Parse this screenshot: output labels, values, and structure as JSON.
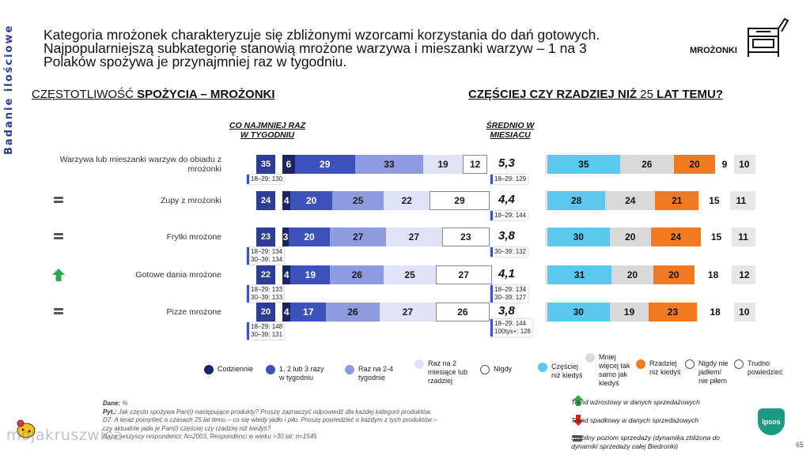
{
  "side_label": "Badanie ilościowe",
  "headline": [
    "Kategoria mrożonek charakteryzuje się zbliżonymi wzorcami korzystania do dań gotowych.",
    "Najpopularniejszą subkategorię stanowią mrożone warzywa i mieszanki warzyw – 1 na 3",
    "Polaków spożywa je przynajmniej raz w tygodniu."
  ],
  "category": "MROŻONKI",
  "section1_title_a": "CZĘSTOTLIWOŚĆ ",
  "section1_title_b": "SPOŻYCIA – MROŻONKI",
  "section2_title_a": "CZĘŚCIEJ CZY RZADZIEJ NIŻ ",
  "section2_title_b": "25",
  "section2_title_c": " LAT TEMU?",
  "col_head_atleast": [
    "CO NAJMNIEJ RAZ",
    "W TYGODNIU"
  ],
  "col_head_avg": [
    "ŚREDNIO W",
    "MIESIĄCU"
  ],
  "chart_data": [
    {
      "type": "bar",
      "title": "CZĘSTOTLIWOŚĆ SPOŻYCIA – MROŻONKI",
      "stacked": true,
      "orientation": "horizontal",
      "categories": [
        "Warzywa lub mieszanki warzyw do obiadu z mrożonki",
        "Zupy z mrożonki",
        "Frytki mrożone",
        "Gotowe dania mrożone",
        "Pizze mrożone"
      ],
      "series": [
        {
          "name": "Codziennie",
          "values": [
            6,
            4,
            3,
            4,
            4
          ]
        },
        {
          "name": "1, 2 lub 3 razy w tygodniu",
          "values": [
            29,
            20,
            20,
            19,
            17
          ]
        },
        {
          "name": "Raz na 2-4 tygodnie",
          "values": [
            33,
            25,
            27,
            26,
            26
          ]
        },
        {
          "name": "Raz na 2 miesiące lub rzadziej",
          "values": [
            19,
            22,
            27,
            25,
            27
          ]
        },
        {
          "name": "Nigdy",
          "values": [
            12,
            29,
            23,
            27,
            26
          ]
        }
      ],
      "at_least_weekly": [
        35,
        24,
        23,
        22,
        20
      ],
      "monthly_average": [
        "5,3",
        "4,4",
        "3,8",
        "4,1",
        "3,8"
      ],
      "trend": [
        "",
        "flat",
        "flat",
        "up",
        "flat"
      ],
      "subgroups_atleast": [
        [
          "18–29: 130"
        ],
        [],
        [
          "18–29: 134",
          "30–39: 134"
        ],
        [
          "18–29: 133",
          "30–39: 133"
        ],
        [
          "18–29: 148",
          "30–39: 131"
        ]
      ],
      "subgroups_avg": [
        [
          "18–29: 129"
        ],
        [
          "18–29: 144"
        ],
        [
          "30–39: 132"
        ],
        [
          "18–29: 134",
          "30–39: 127"
        ],
        [
          "18–29: 144",
          "100tys+: 126"
        ]
      ]
    },
    {
      "type": "bar",
      "title": "CZĘŚCIEJ CZY RZADZIEJ NIŻ 25 LAT TEMU?",
      "stacked": true,
      "orientation": "horizontal",
      "categories": [
        "Warzywa lub mieszanki warzyw do obiadu z mrożonki",
        "Zupy z mrożonki",
        "Frytki mrożone",
        "Gotowe dania mrożone",
        "Pizze mrożone"
      ],
      "series": [
        {
          "name": "Częściej niż kiedyś",
          "values": [
            35,
            28,
            30,
            31,
            30
          ]
        },
        {
          "name": "Mniej więcej tak samo jak kiedyś",
          "values": [
            26,
            24,
            20,
            20,
            19
          ]
        },
        {
          "name": "Rzadziej niż kiedyś",
          "values": [
            20,
            21,
            24,
            20,
            23
          ]
        },
        {
          "name": "Nigdy nie jadłem/ nie piłem",
          "values": [
            9,
            15,
            15,
            18,
            18
          ]
        },
        {
          "name": "Trudno powiedzieć",
          "values": [
            10,
            11,
            11,
            12,
            10
          ]
        }
      ]
    }
  ],
  "legend1": [
    {
      "label": "Codziennie",
      "color": "#1c2466"
    },
    {
      "label": "1, 2 lub 3 razy w tygodniu",
      "color": "#3d52ba"
    },
    {
      "label": "Raz na 2-4 tygodnie",
      "color": "#8e9bde"
    },
    {
      "label": "Raz na 2 miesiące lub rzadziej",
      "color": "#dfe3f6"
    },
    {
      "label": "Nigdy",
      "color": "#ffffff"
    }
  ],
  "legend2": [
    {
      "label": "Częściej niż kiedyś",
      "color": "#5bc8ee"
    },
    {
      "label": "Mniej więcej tak samo jak kiedyś",
      "color": "#d9d9d9"
    },
    {
      "label": "Rzadziej niż kiedyś",
      "color": "#f07a22"
    },
    {
      "label": "Nigdy nie jadłem/ nie piłem",
      "color": "#ffffff"
    },
    {
      "label": "Trudno powiedzieć",
      "color": "#ffffff"
    }
  ],
  "notes": {
    "l1_b": "Dane:",
    "l1": " %",
    "l2_b": "Pyt.:",
    "l2": " Jak często spożywa Pan(i) następujące produkty? Proszę zaznaczyć odpowiedź dla każdej kategorii produktów.",
    "l3": "D7. A teraz pomyśleć o czasach 25 lat temu – co się wtedy jadło i piło. Proszę powiedzieć o każdym z tych produktów –",
    "l4": "czy aktualnie jada je Pan(i) częściej czy rzadziej niż kiedyś?",
    "l5": "Baza: wszyscy respondenci: N=2003, Respondenci w wieku >30 lat: n=1545"
  },
  "trend_legend": {
    "up": "Trend wzrostowy w danych sprzedażowych",
    "down": "Trend spadkowy w danych sprzedażowych",
    "flat": "Stabilny poziom sprzedaży (dynamika zbliżona do dynamiki sprzedaży całej Biedronki)"
  },
  "logo": "Ipsos",
  "page_number": "65",
  "watermark": "mojakruszwica"
}
